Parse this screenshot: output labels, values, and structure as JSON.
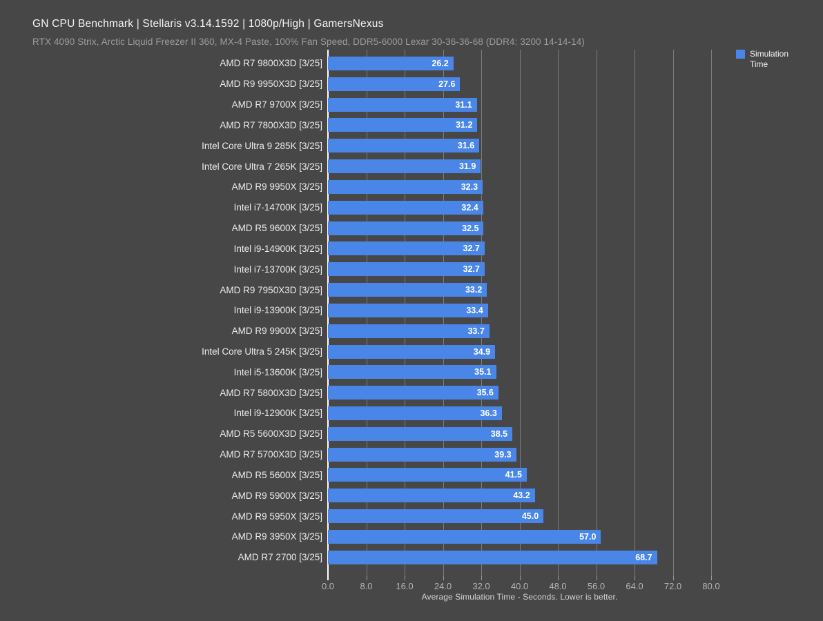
{
  "header": {
    "title": "GN CPU Benchmark | Stellaris v3.14.1592 | 1080p/High | GamersNexus",
    "subtitle": "RTX 4090 Strix, Arctic Liquid Freezer II 360, MX-4 Paste, 100% Fan Speed, DDR5-6000 Lexar 30-36-36-68 (DDR4: 3200 14-14-14)"
  },
  "legend": {
    "label": "Simulation Time",
    "color": "#4a86e8",
    "position": "top-right"
  },
  "chart_data": {
    "type": "bar",
    "orientation": "horizontal",
    "title": "GN CPU Benchmark | Stellaris v3.14.1592 | 1080p/High | GamersNexus",
    "subtitle": "RTX 4090 Strix, Arctic Liquid Freezer II 360, MX-4 Paste, 100% Fan Speed, DDR5-6000 Lexar 30-36-36-68 (DDR4: 3200 14-14-14)",
    "categories": [
      "AMD R7 9800X3D [3/25]",
      "AMD R9 9950X3D [3/25]",
      "AMD R7 9700X [3/25]",
      "AMD R7 7800X3D [3/25]",
      "Intel Core Ultra 9 285K [3/25]",
      "Intel Core Ultra 7 265K [3/25]",
      "AMD R9 9950X [3/25]",
      "Intel i7-14700K [3/25]",
      "AMD R5 9600X [3/25]",
      "Intel i9-14900K [3/25]",
      "Intel i7-13700K [3/25]",
      "AMD R9 7950X3D [3/25]",
      "Intel i9-13900K [3/25]",
      "AMD R9 9900X [3/25]",
      "Intel Core Ultra 5 245K [3/25]",
      "Intel i5-13600K [3/25]",
      "AMD R7 5800X3D [3/25]",
      "Intel i9-12900K [3/25]",
      "AMD R5 5600X3D [3/25]",
      "AMD R7 5700X3D [3/25]",
      "AMD R5 5600X [3/25]",
      "AMD R9 5900X [3/25]",
      "AMD R9 5950X [3/25]",
      "AMD R9 3950X [3/25]",
      "AMD R7 2700 [3/25]"
    ],
    "series": [
      {
        "name": "Simulation Time",
        "values": [
          26.2,
          27.6,
          31.1,
          31.2,
          31.6,
          31.9,
          32.3,
          32.4,
          32.5,
          32.7,
          32.7,
          33.2,
          33.4,
          33.7,
          34.9,
          35.1,
          35.6,
          36.3,
          38.5,
          39.3,
          41.5,
          43.2,
          45.0,
          57.0,
          68.7
        ],
        "value_labels": [
          "26.2",
          "27.6",
          "31.1",
          "31.2",
          "31.6",
          "31.9",
          "32.3",
          "32.4",
          "32.5",
          "32.7",
          "32.7",
          "33.2",
          "33.4",
          "33.7",
          "34.9",
          "35.1",
          "35.6",
          "36.3",
          "38.5",
          "39.3",
          "41.5",
          "43.2",
          "45.0",
          "57.0",
          "68.7"
        ],
        "color": "#4a86e8"
      }
    ],
    "xlabel": "Average Simulation Time - Seconds. Lower is better.",
    "ylabel": "",
    "xlim": [
      0,
      80
    ],
    "xticks": [
      0,
      8,
      16,
      24,
      32,
      40,
      48,
      56,
      64,
      72,
      80
    ],
    "xtick_labels": [
      "0.0",
      "8.0",
      "16.0",
      "24.0",
      "32.0",
      "40.0",
      "48.0",
      "56.0",
      "64.0",
      "72.0",
      "80.0"
    ],
    "grid": true,
    "legend_position": "top-right",
    "sort_order": "ascending",
    "colors": {
      "background": "#474747",
      "bar": "#4a86e8",
      "gridline": "#7c7c7c",
      "zero_axis": "#ffffff",
      "title": "#f5f5f5",
      "subtitle": "#9d9d9d",
      "category_label": "#ececec",
      "value_label": "#ffffff",
      "tick_label": "#b5b5b5",
      "caption": "#d4d4d4"
    }
  }
}
